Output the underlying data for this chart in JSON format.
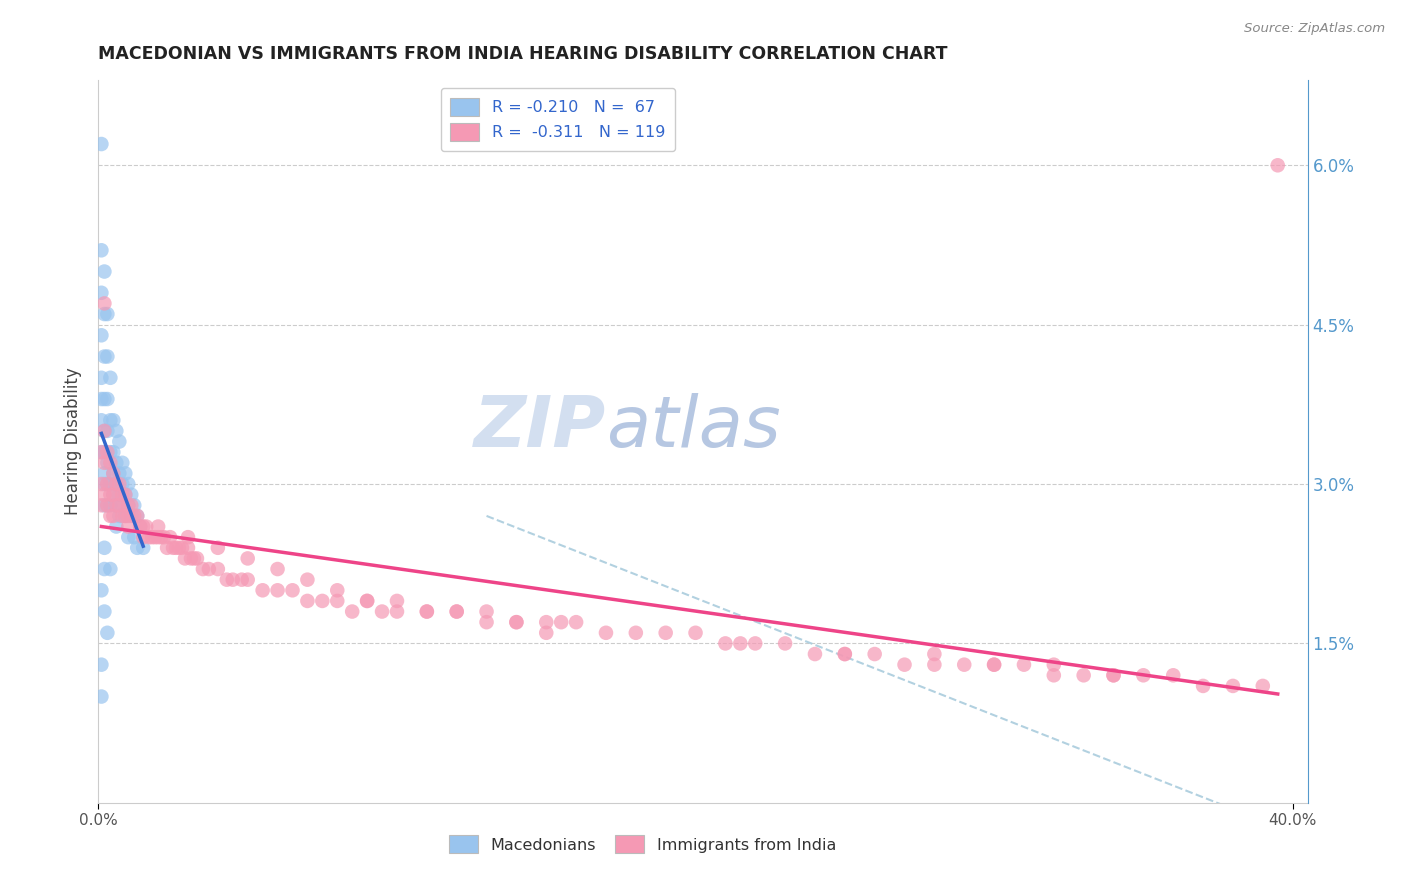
{
  "title": "MACEDONIAN VS IMMIGRANTS FROM INDIA HEARING DISABILITY CORRELATION CHART",
  "source": "Source: ZipAtlas.com",
  "ylabel": "Hearing Disability",
  "ytick_vals": [
    0.015,
    0.03,
    0.045,
    0.06
  ],
  "ytick_labels": [
    "1.5%",
    "3.0%",
    "4.5%",
    "6.0%"
  ],
  "xlim": [
    0.0,
    0.405
  ],
  "ylim": [
    0.0,
    0.068
  ],
  "mac_color": "#99c4ee",
  "india_color": "#f599b4",
  "mac_line_color": "#3366cc",
  "india_line_color": "#ee4488",
  "diagonal_color": "#aaccdd",
  "watermark_zip": "ZIP",
  "watermark_atlas": "atlas",
  "background_color": "#ffffff",
  "grid_color": "#cccccc",
  "right_tick_color": "#5599cc",
  "legend1_line1": "R = -0.210   N =  67",
  "legend1_line2": "R =  -0.311   N = 119",
  "legend2_label1": "Macedonians",
  "legend2_label2": "Immigrants from India",
  "mac_scatter_x": [
    0.001,
    0.001,
    0.001,
    0.001,
    0.001,
    0.001,
    0.001,
    0.001,
    0.002,
    0.002,
    0.002,
    0.002,
    0.002,
    0.002,
    0.002,
    0.002,
    0.002,
    0.003,
    0.003,
    0.003,
    0.003,
    0.003,
    0.003,
    0.003,
    0.004,
    0.004,
    0.004,
    0.004,
    0.004,
    0.005,
    0.005,
    0.005,
    0.005,
    0.006,
    0.006,
    0.006,
    0.006,
    0.006,
    0.007,
    0.007,
    0.007,
    0.007,
    0.008,
    0.008,
    0.008,
    0.009,
    0.009,
    0.009,
    0.01,
    0.01,
    0.01,
    0.011,
    0.011,
    0.012,
    0.012,
    0.013,
    0.013,
    0.014,
    0.015,
    0.001,
    0.002,
    0.003,
    0.001,
    0.001,
    0.002,
    0.004,
    0.002
  ],
  "mac_scatter_y": [
    0.062,
    0.052,
    0.048,
    0.044,
    0.04,
    0.038,
    0.036,
    0.033,
    0.05,
    0.046,
    0.042,
    0.038,
    0.035,
    0.033,
    0.031,
    0.03,
    0.028,
    0.046,
    0.042,
    0.038,
    0.035,
    0.032,
    0.03,
    0.028,
    0.04,
    0.036,
    0.033,
    0.03,
    0.028,
    0.036,
    0.033,
    0.031,
    0.029,
    0.035,
    0.032,
    0.03,
    0.028,
    0.026,
    0.034,
    0.031,
    0.029,
    0.027,
    0.032,
    0.03,
    0.028,
    0.031,
    0.029,
    0.027,
    0.03,
    0.028,
    0.025,
    0.029,
    0.027,
    0.028,
    0.025,
    0.027,
    0.024,
    0.026,
    0.024,
    0.02,
    0.018,
    0.016,
    0.013,
    0.01,
    0.022,
    0.022,
    0.024
  ],
  "india_scatter_x": [
    0.001,
    0.001,
    0.001,
    0.002,
    0.002,
    0.002,
    0.002,
    0.003,
    0.003,
    0.003,
    0.004,
    0.004,
    0.004,
    0.005,
    0.005,
    0.005,
    0.006,
    0.006,
    0.007,
    0.007,
    0.008,
    0.008,
    0.009,
    0.009,
    0.01,
    0.01,
    0.011,
    0.012,
    0.013,
    0.014,
    0.015,
    0.015,
    0.016,
    0.017,
    0.018,
    0.019,
    0.02,
    0.021,
    0.022,
    0.023,
    0.024,
    0.025,
    0.026,
    0.027,
    0.028,
    0.029,
    0.03,
    0.031,
    0.032,
    0.033,
    0.035,
    0.037,
    0.04,
    0.043,
    0.045,
    0.048,
    0.05,
    0.055,
    0.06,
    0.065,
    0.07,
    0.075,
    0.08,
    0.085,
    0.09,
    0.095,
    0.1,
    0.11,
    0.12,
    0.13,
    0.14,
    0.15,
    0.155,
    0.16,
    0.17,
    0.18,
    0.19,
    0.2,
    0.21,
    0.215,
    0.22,
    0.23,
    0.24,
    0.25,
    0.26,
    0.27,
    0.28,
    0.29,
    0.3,
    0.31,
    0.32,
    0.33,
    0.34,
    0.35,
    0.36,
    0.37,
    0.38,
    0.39,
    0.395,
    0.01,
    0.02,
    0.03,
    0.04,
    0.05,
    0.06,
    0.07,
    0.08,
    0.09,
    0.1,
    0.11,
    0.12,
    0.13,
    0.14,
    0.15,
    0.25,
    0.28,
    0.3,
    0.32,
    0.34
  ],
  "india_scatter_y": [
    0.033,
    0.03,
    0.028,
    0.035,
    0.032,
    0.029,
    0.047,
    0.033,
    0.03,
    0.028,
    0.032,
    0.029,
    0.027,
    0.031,
    0.029,
    0.027,
    0.03,
    0.028,
    0.03,
    0.028,
    0.029,
    0.027,
    0.029,
    0.027,
    0.028,
    0.026,
    0.028,
    0.027,
    0.027,
    0.026,
    0.026,
    0.025,
    0.026,
    0.025,
    0.025,
    0.025,
    0.025,
    0.025,
    0.025,
    0.024,
    0.025,
    0.024,
    0.024,
    0.024,
    0.024,
    0.023,
    0.024,
    0.023,
    0.023,
    0.023,
    0.022,
    0.022,
    0.022,
    0.021,
    0.021,
    0.021,
    0.021,
    0.02,
    0.02,
    0.02,
    0.019,
    0.019,
    0.019,
    0.018,
    0.019,
    0.018,
    0.018,
    0.018,
    0.018,
    0.018,
    0.017,
    0.017,
    0.017,
    0.017,
    0.016,
    0.016,
    0.016,
    0.016,
    0.015,
    0.015,
    0.015,
    0.015,
    0.014,
    0.014,
    0.014,
    0.013,
    0.014,
    0.013,
    0.013,
    0.013,
    0.013,
    0.012,
    0.012,
    0.012,
    0.012,
    0.011,
    0.011,
    0.011,
    0.06,
    0.027,
    0.026,
    0.025,
    0.024,
    0.023,
    0.022,
    0.021,
    0.02,
    0.019,
    0.019,
    0.018,
    0.018,
    0.017,
    0.017,
    0.016,
    0.014,
    0.013,
    0.013,
    0.012,
    0.012
  ]
}
